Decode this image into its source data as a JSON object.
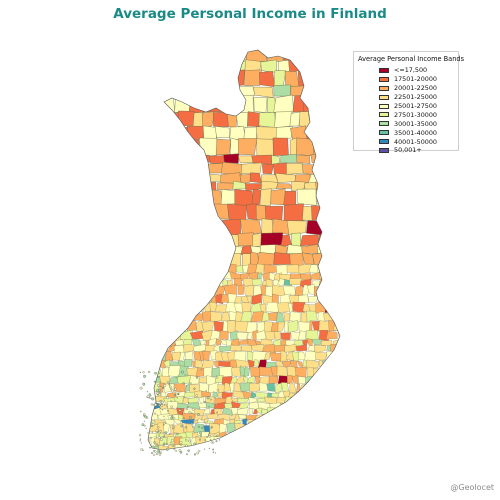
{
  "title": "Average Personal Income in Finland",
  "legend": {
    "title": "Average Personal Income Bands",
    "bands": [
      {
        "label": "<=17,500",
        "color": "#a50026"
      },
      {
        "label": "17501-20000",
        "color": "#f46d43"
      },
      {
        "label": "20001-22500",
        "color": "#fdae61"
      },
      {
        "label": "22501-25000",
        "color": "#fee08b"
      },
      {
        "label": "25001-27500",
        "color": "#ffffbf"
      },
      {
        "label": "27501-30000",
        "color": "#e6f598"
      },
      {
        "label": "30001-35000",
        "color": "#abdda4"
      },
      {
        "label": "35001-40000",
        "color": "#66c2a5"
      },
      {
        "label": "40001-50000",
        "color": "#3288bd"
      },
      {
        "label": "50,001+",
        "color": "#5e4fa2"
      }
    ]
  },
  "credit": "@Geolocet"
}
